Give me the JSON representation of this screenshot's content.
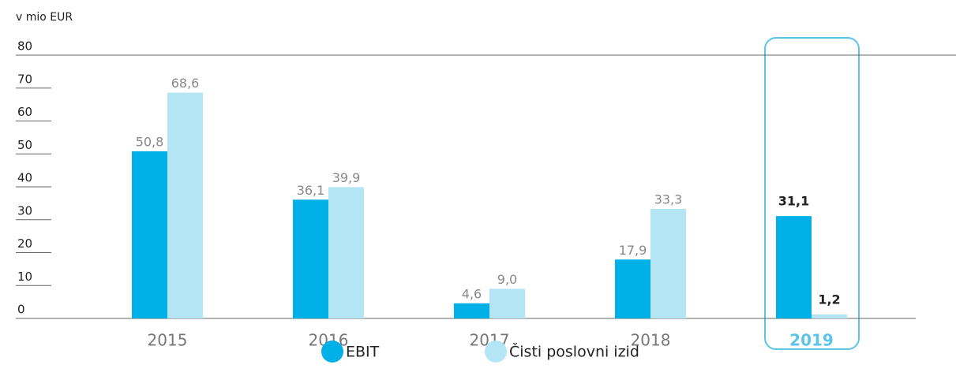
{
  "chart_data": {
    "type": "bar",
    "y_axis_label": "v mio EUR",
    "categories": [
      "2015",
      "2016",
      "2017",
      "2018",
      "2019"
    ],
    "series": [
      {
        "name": "EBIT",
        "color": "#00b0e6",
        "values": [
          50.8,
          36.1,
          4.6,
          17.9,
          31.1
        ],
        "value_labels": [
          "50,8",
          "36,1",
          "4,6",
          "17,9",
          "31,1"
        ]
      },
      {
        "name": "Čisti poslovni izid",
        "color": "#b3e5f5",
        "values": [
          68.6,
          39.9,
          9.0,
          33.3,
          1.2
        ],
        "value_labels": [
          "68,6",
          "39,9",
          "9,0",
          "33,3",
          "1,2"
        ]
      }
    ],
    "ylim": [
      0,
      80
    ],
    "yticks": [
      0,
      10,
      20,
      30,
      40,
      50,
      60,
      70,
      80
    ],
    "highlight": 4,
    "highlight_color": "#5bc4e8"
  }
}
